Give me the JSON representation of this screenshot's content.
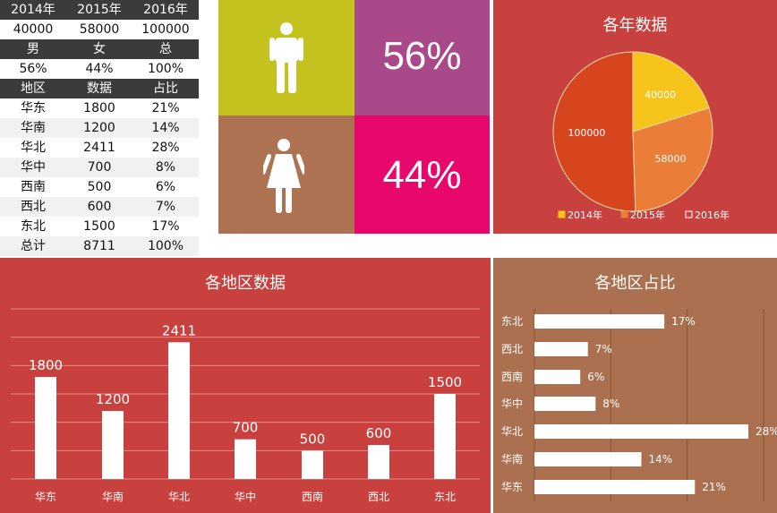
{
  "colors": {
    "male_tile": "#c3c21f",
    "male_pct_tile": "#a9498a",
    "female_tile": "#ac7251",
    "female_pct_tile": "#e8086b",
    "panel_red": "#c8413e",
    "panel_brown": "#ab7050",
    "pie_2014": "#f7c41c",
    "pie_2015": "#ea7d37",
    "pie_2016": "#d6451e"
  },
  "table": {
    "rows": [
      {
        "type": "header",
        "cells": [
          "2014年",
          "2015年",
          "2016年"
        ]
      },
      {
        "type": "data",
        "cells": [
          "40000",
          "58000",
          "100000"
        ]
      },
      {
        "type": "header",
        "cells": [
          "男",
          "女",
          "总"
        ]
      },
      {
        "type": "data",
        "cells": [
          "56%",
          "44%",
          "100%"
        ]
      },
      {
        "type": "header",
        "cells": [
          "地区",
          "数据",
          "占比"
        ]
      },
      {
        "type": "data",
        "cells": [
          "华东",
          "1800",
          "21%"
        ]
      },
      {
        "type": "alt",
        "cells": [
          "华南",
          "1200",
          "14%"
        ]
      },
      {
        "type": "data",
        "cells": [
          "华北",
          "2411",
          "28%"
        ]
      },
      {
        "type": "alt",
        "cells": [
          "华中",
          "700",
          "8%"
        ]
      },
      {
        "type": "data",
        "cells": [
          "西南",
          "500",
          "6%"
        ]
      },
      {
        "type": "alt",
        "cells": [
          "西北",
          "600",
          "7%"
        ]
      },
      {
        "type": "data",
        "cells": [
          "东北",
          "1500",
          "17%"
        ]
      },
      {
        "type": "alt",
        "cells": [
          "总计",
          "8711",
          "100%"
        ]
      }
    ]
  },
  "gender": {
    "male_icon": "male-person-icon",
    "female_icon": "female-person-icon",
    "male_pct": "56%",
    "female_pct": "44%"
  },
  "chart_data": [
    {
      "type": "pie",
      "title": "各年数据",
      "slices": [
        {
          "label": "2014年",
          "value": 40000,
          "data_label": "40000",
          "color": "#f7c41c"
        },
        {
          "label": "2015年",
          "value": 58000,
          "data_label": "58000",
          "color": "#ea7d37"
        },
        {
          "label": "2016年",
          "value": 100000,
          "data_label": "100000",
          "color": "#d6451e"
        }
      ],
      "legend": [
        "2014年",
        "2015年",
        "2016年"
      ],
      "legend_position": "bottom"
    },
    {
      "type": "bar",
      "title": "各地区数据",
      "categories": [
        "华东",
        "华南",
        "华北",
        "华中",
        "西南",
        "西北",
        "东北"
      ],
      "values": [
        1800,
        1200,
        2411,
        700,
        500,
        600,
        1500
      ],
      "ylim": [
        0,
        3000
      ],
      "grid": true
    },
    {
      "type": "bar",
      "orientation": "horizontal",
      "title": "各地区占比",
      "categories": [
        "东北",
        "西北",
        "西南",
        "华中",
        "华北",
        "华南",
        "华东"
      ],
      "values": [
        17,
        7,
        6,
        8,
        28,
        14,
        21
      ],
      "value_labels": [
        "17%",
        "7%",
        "6%",
        "8%",
        "28%",
        "14%",
        "21%"
      ],
      "xlim": [
        0,
        30
      ],
      "grid": true
    }
  ]
}
